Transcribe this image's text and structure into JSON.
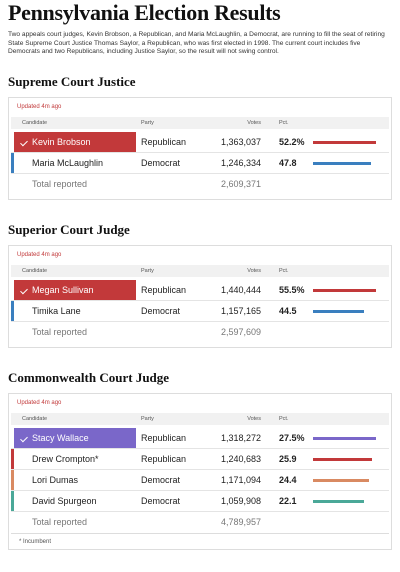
{
  "header": {
    "title": "Pennsylvania Election Results",
    "intro": "Two appeals court judges, Kevin Brobson, a Republican, and Maria McLaughlin, a Democrat, are running to fill the seat of retiring State Supreme Court Justice Thomas Saylor, a Republican, who was first elected in 1998. The current court includes five Democrats and two Republicans, including Justice Saylor, so the result will not swing control."
  },
  "races": [
    {
      "title": "Supreme Court Justice",
      "updated": "Updated 4m ago",
      "columns": [
        "Candidate",
        "Party",
        "Votes",
        "Pct."
      ],
      "rows": [
        {
          "candidate": "Kevin Brobson",
          "party": "Republican",
          "votes": "1,363,037",
          "pct": 52.2,
          "pct_label": "52.2%",
          "color": "#c2393a",
          "winner": true
        },
        {
          "candidate": "Maria McLaughlin",
          "party": "Democrat",
          "votes": "1,246,334",
          "pct": 47.8,
          "color": "#3a7fbf"
        }
      ],
      "total_label": "Total reported",
      "total": "2,609,371"
    },
    {
      "title": "Superior Court Judge",
      "updated": "Updated 4m ago",
      "columns": [
        "Candidate",
        "Party",
        "Votes",
        "Pct."
      ],
      "rows": [
        {
          "candidate": "Megan Sullivan",
          "party": "Republican",
          "votes": "1,440,444",
          "pct": 55.5,
          "pct_label": "55.5%",
          "color": "#c2393a",
          "winner": true
        },
        {
          "candidate": "Timika Lane",
          "party": "Democrat",
          "votes": "1,157,165",
          "pct": 44.5,
          "color": "#3a7fbf"
        }
      ],
      "total_label": "Total reported",
      "total": "2,597,609"
    },
    {
      "title": "Commonwealth Court Judge",
      "updated": "Updated 4m ago",
      "columns": [
        "Candidate",
        "Party",
        "Votes",
        "Pct."
      ],
      "rows": [
        {
          "candidate": "Stacy Wallace",
          "party": "Republican",
          "votes": "1,318,272",
          "pct": 27.5,
          "pct_label": "27.5%",
          "color": "#7a67c9",
          "winner": true
        },
        {
          "candidate": "Drew Crompton*",
          "party": "Republican",
          "votes": "1,240,683",
          "pct": 25.9,
          "color": "#c2393a"
        },
        {
          "candidate": "Lori Dumas",
          "party": "Democrat",
          "votes": "1,171,094",
          "pct": 24.4,
          "color": "#d98a62"
        },
        {
          "candidate": "David Spurgeon",
          "party": "Democrat",
          "votes": "1,059,908",
          "pct": 22.1,
          "color": "#4aa898"
        }
      ],
      "total_label": "Total reported",
      "total": "4,789,957",
      "footnote": "* Incumbent"
    }
  ]
}
